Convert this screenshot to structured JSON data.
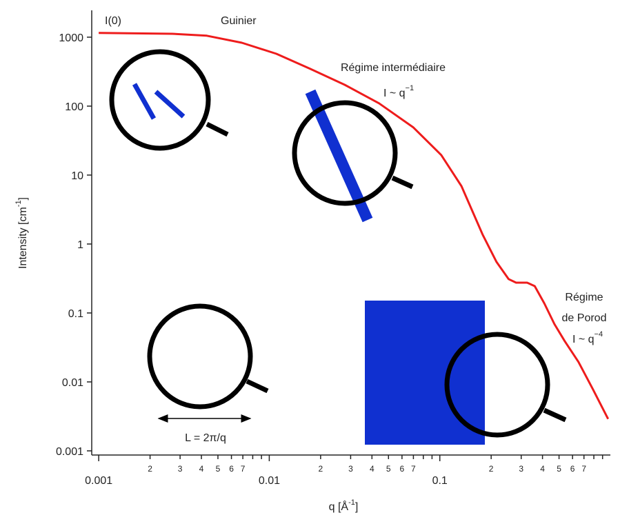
{
  "chart_data": {
    "type": "line",
    "x": [
      0.001,
      0.0027,
      0.0043,
      0.0069,
      0.011,
      0.0174,
      0.0277,
      0.044,
      0.07,
      0.102,
      0.134,
      0.178,
      0.215,
      0.253,
      0.28,
      0.325,
      0.36,
      0.41,
      0.47,
      0.54,
      0.65,
      0.79,
      0.97
    ],
    "values": [
      1150,
      1120,
      1050,
      830,
      575,
      347,
      204,
      110,
      49,
      19.5,
      6.9,
      1.38,
      0.55,
      0.31,
      0.275,
      0.275,
      0.245,
      0.138,
      0.069,
      0.039,
      0.0195,
      0.0078,
      0.0029
    ],
    "color": "#ee1c1c",
    "xscale": "log",
    "yscale": "log",
    "xlim": [
      0.00091,
      1
    ],
    "ylim": [
      0.00087,
      2450
    ],
    "xticks": [
      0.001,
      {
        "value": 0.002,
        "label": "2"
      },
      {
        "value": 0.003,
        "label": "3"
      },
      {
        "value": 0.004,
        "label": "4"
      },
      {
        "value": 0.005,
        "label": "5"
      },
      {
        "value": 0.006,
        "label": "6"
      },
      {
        "value": 0.007,
        "label": "7"
      },
      0.01,
      {
        "value": 0.02,
        "label": "2"
      },
      {
        "value": 0.03,
        "label": "3"
      },
      {
        "value": 0.04,
        "label": "4"
      },
      {
        "value": 0.05,
        "label": "5"
      },
      {
        "value": 0.06,
        "label": "6"
      },
      {
        "value": 0.07,
        "label": "7"
      },
      0.1,
      {
        "value": 0.2,
        "label": "2"
      },
      {
        "value": 0.3,
        "label": "3"
      },
      {
        "value": 0.4,
        "label": "4"
      },
      {
        "value": 0.5,
        "label": "5"
      },
      {
        "value": 0.6,
        "label": "6"
      },
      {
        "value": 0.7,
        "label": "7"
      }
    ],
    "xminorticks": [
      0.008,
      0.009,
      0.08,
      0.09,
      0.8,
      0.9
    ],
    "yticks": [
      1000,
      100,
      10,
      1,
      0.1,
      0.01,
      0.001
    ],
    "xlabel": [
      "q [Å",
      "-1",
      "]"
    ],
    "ylabel": [
      "Intensity [cm",
      "-1",
      "]"
    ],
    "annotations": {
      "i0": "I(0)",
      "guinier": "Guinier",
      "intermediate": "Régime intermédiaire",
      "intermediate_law": [
        "I ~ q",
        "−1"
      ],
      "porod": [
        "Régime",
        "de Porod"
      ],
      "porod_law": [
        "I ~ q",
        "−4"
      ],
      "length": "L = 2π/q"
    }
  }
}
